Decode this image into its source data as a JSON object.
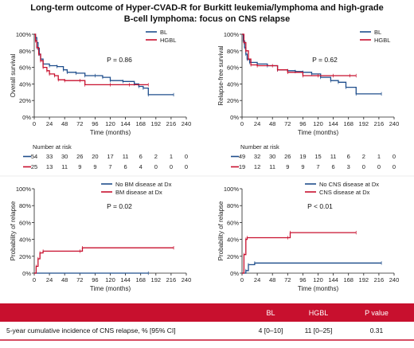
{
  "title": {
    "line1": "Long-term outcome of Hyper-CVAD-R for Burkitt leukemia/lymphoma and high-grade",
    "line2": "B-cell lymphoma: focus on CNS relapse"
  },
  "colors": {
    "blue": "#1f4e8c",
    "red": "#c8102e",
    "bar": "#c8102e"
  },
  "chart_data": [
    {
      "type": "line",
      "step": true,
      "ylabel": "Overall survival",
      "xlabel": "Time (months)",
      "xticks": [
        0,
        24,
        48,
        72,
        96,
        120,
        144,
        168,
        192,
        216,
        240
      ],
      "yticks": [
        "0%",
        "20%",
        "40%",
        "60%",
        "80%",
        "100%"
      ],
      "xlim": [
        0,
        240
      ],
      "ylim": [
        0,
        100
      ],
      "pvalue": "P = 0.86",
      "legend_position": "top-right",
      "series": [
        {
          "name": "BL",
          "color": "#1f4e8c",
          "points": [
            [
              0,
              100
            ],
            [
              2,
              96
            ],
            [
              4,
              90
            ],
            [
              6,
              83
            ],
            [
              8,
              76
            ],
            [
              10,
              70
            ],
            [
              14,
              64
            ],
            [
              24,
              62
            ],
            [
              36,
              61
            ],
            [
              46,
              57
            ],
            [
              52,
              54
            ],
            [
              66,
              53
            ],
            [
              80,
              50
            ],
            [
              96,
              50
            ],
            [
              108,
              48
            ],
            [
              120,
              44
            ],
            [
              140,
              43
            ],
            [
              158,
              40
            ],
            [
              165,
              37
            ],
            [
              172,
              35
            ],
            [
              180,
              27
            ],
            [
              220,
              27
            ]
          ]
        },
        {
          "name": "HGBL",
          "color": "#c8102e",
          "points": [
            [
              0,
              100
            ],
            [
              2,
              92
            ],
            [
              4,
              84
            ],
            [
              7,
              76
            ],
            [
              10,
              68
            ],
            [
              14,
              60
            ],
            [
              20,
              56
            ],
            [
              24,
              52
            ],
            [
              32,
              50
            ],
            [
              38,
              45
            ],
            [
              48,
              44
            ],
            [
              72,
              44
            ],
            [
              80,
              39
            ],
            [
              120,
              39
            ],
            [
              150,
              39
            ],
            [
              180,
              39
            ]
          ]
        }
      ],
      "risk_table": {
        "header": "Number at risk",
        "rows": [
          {
            "name": "BL",
            "values": [
              "54",
              "33",
              "30",
              "26",
              "20",
              "17",
              "11",
              "6",
              "2",
              "1",
              "0"
            ]
          },
          {
            "name": "HGBL",
            "values": [
              "25",
              "13",
              "11",
              "9",
              "9",
              "7",
              "6",
              "4",
              "0",
              "0",
              "0"
            ]
          }
        ]
      }
    },
    {
      "type": "line",
      "step": true,
      "ylabel": "Relapse-free survival",
      "xlabel": "Time (months)",
      "xticks": [
        0,
        24,
        48,
        72,
        96,
        120,
        144,
        168,
        192,
        216,
        240
      ],
      "yticks": [
        "0%",
        "20%",
        "40%",
        "60%",
        "80%",
        "100%"
      ],
      "xlim": [
        0,
        240
      ],
      "ylim": [
        0,
        100
      ],
      "pvalue": "P = 0.62",
      "legend_position": "top-right",
      "series": [
        {
          "name": "BL",
          "color": "#1f4e8c",
          "points": [
            [
              0,
              100
            ],
            [
              2,
              92
            ],
            [
              4,
              84
            ],
            [
              6,
              76
            ],
            [
              8,
              70
            ],
            [
              12,
              66
            ],
            [
              24,
              64
            ],
            [
              40,
              62
            ],
            [
              56,
              57
            ],
            [
              72,
              56
            ],
            [
              84,
              55
            ],
            [
              96,
              54
            ],
            [
              110,
              52
            ],
            [
              124,
              48
            ],
            [
              140,
              44
            ],
            [
              152,
              42
            ],
            [
              164,
              36
            ],
            [
              180,
              28
            ],
            [
              220,
              28
            ]
          ]
        },
        {
          "name": "HGBL",
          "color": "#c8102e",
          "points": [
            [
              0,
              100
            ],
            [
              3,
              90
            ],
            [
              6,
              80
            ],
            [
              10,
              70
            ],
            [
              14,
              63
            ],
            [
              24,
              62
            ],
            [
              48,
              62
            ],
            [
              56,
              57
            ],
            [
              72,
              54
            ],
            [
              96,
              50
            ],
            [
              120,
              50
            ],
            [
              144,
              50
            ],
            [
              170,
              50
            ],
            [
              180,
              50
            ]
          ]
        }
      ],
      "risk_table": {
        "header": "Number at risk",
        "rows": [
          {
            "name": "BL",
            "values": [
              "49",
              "32",
              "30",
              "26",
              "19",
              "15",
              "11",
              "6",
              "2",
              "1",
              "0"
            ]
          },
          {
            "name": "HGBL",
            "values": [
              "19",
              "12",
              "11",
              "9",
              "9",
              "7",
              "6",
              "3",
              "0",
              "0",
              "0"
            ]
          }
        ]
      }
    },
    {
      "type": "line",
      "step": true,
      "ylabel": "Probability of relapse",
      "xlabel": "Time (months)",
      "xticks": [
        0,
        24,
        48,
        72,
        96,
        120,
        144,
        168,
        192,
        216,
        240
      ],
      "yticks": [
        "0%",
        "20%",
        "40%",
        "60%",
        "80%",
        "100%"
      ],
      "xlim": [
        0,
        240
      ],
      "ylim": [
        0,
        100
      ],
      "pvalue": "P = 0.02",
      "legend_position": "top-right",
      "series": [
        {
          "name": "No BM disease at Dx",
          "color": "#1f4e8c",
          "points": [
            [
              0,
              0
            ],
            [
              180,
              0
            ]
          ]
        },
        {
          "name": "BM disease at Dx",
          "color": "#c8102e",
          "points": [
            [
              0,
              0
            ],
            [
              3,
              8
            ],
            [
              6,
              17
            ],
            [
              9,
              24
            ],
            [
              14,
              26
            ],
            [
              72,
              26
            ],
            [
              76,
              30
            ],
            [
              220,
              30
            ]
          ]
        }
      ]
    },
    {
      "type": "line",
      "step": true,
      "ylabel": "Probability of relapse",
      "xlabel": "Time (months)",
      "xticks": [
        0,
        24,
        48,
        72,
        96,
        120,
        144,
        168,
        192,
        216,
        240
      ],
      "yticks": [
        "0%",
        "20%",
        "40%",
        "60%",
        "80%",
        "100%"
      ],
      "xlim": [
        0,
        240
      ],
      "ylim": [
        0,
        100
      ],
      "pvalue": "P < 0.01",
      "legend_position": "top-right",
      "series": [
        {
          "name": "No CNS disease at Dx",
          "color": "#1f4e8c",
          "points": [
            [
              0,
              0
            ],
            [
              6,
              3
            ],
            [
              10,
              10
            ],
            [
              20,
              12
            ],
            [
              220,
              12
            ]
          ]
        },
        {
          "name": "CNS disease at Dx",
          "color": "#c8102e",
          "points": [
            [
              0,
              0
            ],
            [
              3,
              22
            ],
            [
              6,
              40
            ],
            [
              8,
              42
            ],
            [
              72,
              42
            ],
            [
              76,
              48
            ],
            [
              180,
              48
            ]
          ]
        }
      ]
    },
    {
      "type": "table",
      "columns": [
        "",
        "BL",
        "HGBL",
        "P value"
      ],
      "rows": [
        [
          "5-year cumulative incidence of CNS relapse, % [95% CI]",
          "4 [0–10]",
          "11 [0–25]",
          "0.31"
        ]
      ]
    }
  ]
}
